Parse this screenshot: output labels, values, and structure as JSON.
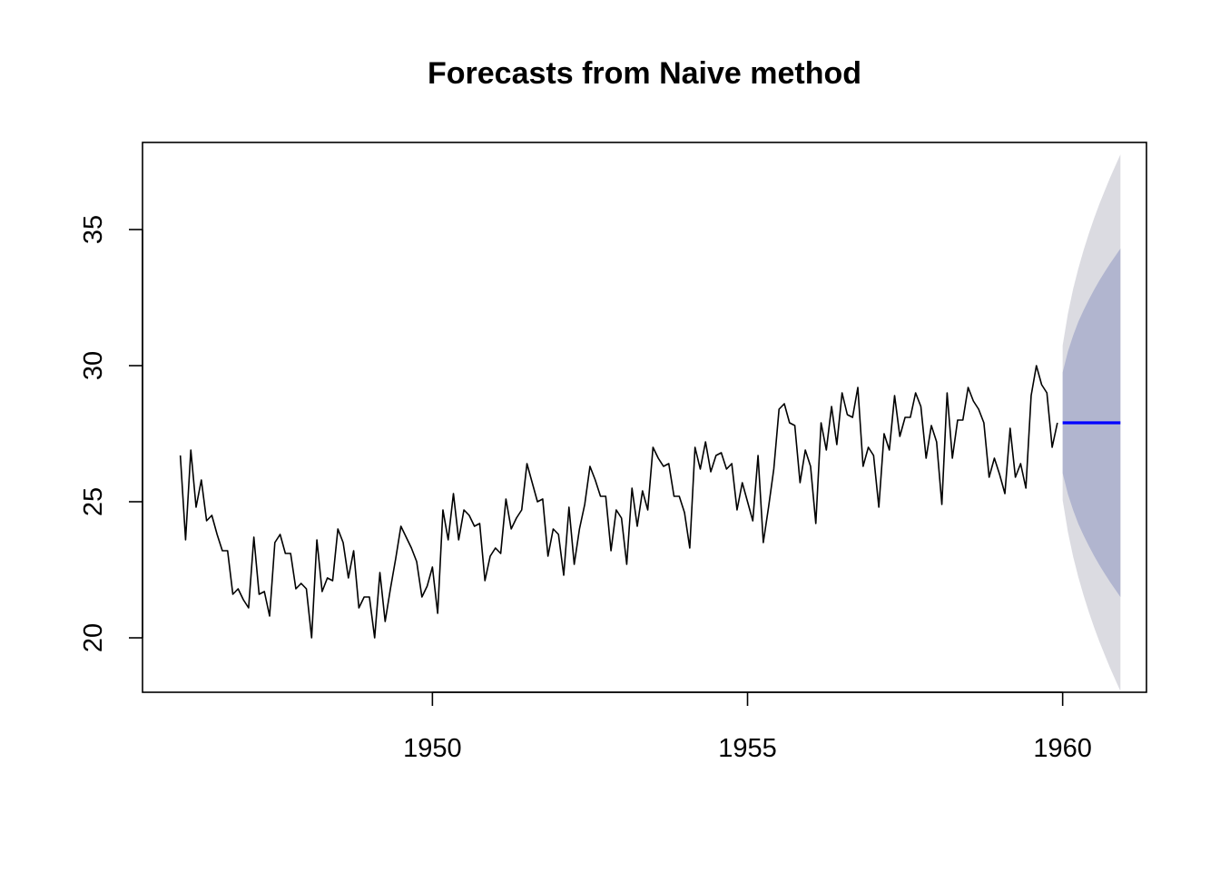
{
  "chart_data": {
    "type": "line",
    "title": "Forecasts from Naive method",
    "xlabel": "",
    "ylabel": "",
    "xlim": [
      1945.4,
      1961.33
    ],
    "ylim": [
      18.0,
      38.2
    ],
    "x_ticks": [
      1950,
      1955,
      1960
    ],
    "x_tick_labels": [
      "1950",
      "1955",
      "1960"
    ],
    "y_ticks": [
      20,
      25,
      30,
      35
    ],
    "y_tick_labels": [
      "20",
      "25",
      "30",
      "35"
    ],
    "grid": false,
    "legend": "none",
    "colors": {
      "history": "#000000",
      "forecast": "#0000ff",
      "band_80": "#b1b5cf",
      "band_95": "#dbdbe1"
    },
    "series": [
      {
        "role": "history",
        "start": 1946.0,
        "frequency": 12,
        "values": [
          26.7,
          23.6,
          26.9,
          24.8,
          25.8,
          24.3,
          24.5,
          23.8,
          23.2,
          23.2,
          21.6,
          21.8,
          21.4,
          21.1,
          23.7,
          21.6,
          21.7,
          20.8,
          23.5,
          23.8,
          23.1,
          23.1,
          21.8,
          22.0,
          21.8,
          20.0,
          23.6,
          21.7,
          22.2,
          22.1,
          24.0,
          23.5,
          22.2,
          23.2,
          21.1,
          21.5,
          21.5,
          20.0,
          22.4,
          20.6,
          21.8,
          22.9,
          24.1,
          23.7,
          23.3,
          22.8,
          21.5,
          21.9,
          22.6,
          20.9,
          24.7,
          23.6,
          25.3,
          23.6,
          24.7,
          24.5,
          24.1,
          24.2,
          22.1,
          23.0,
          23.3,
          23.1,
          25.1,
          24.0,
          24.4,
          24.7,
          26.4,
          25.7,
          25.0,
          25.1,
          23.0,
          24.0,
          23.8,
          22.3,
          24.8,
          22.7,
          24.0,
          24.9,
          26.3,
          25.8,
          25.2,
          25.2,
          23.2,
          24.7,
          24.4,
          22.7,
          25.5,
          24.1,
          25.4,
          24.7,
          27.0,
          26.6,
          26.3,
          26.4,
          25.2,
          25.2,
          24.6,
          23.3,
          27.0,
          26.2,
          27.2,
          26.1,
          26.7,
          26.8,
          26.2,
          26.4,
          24.7,
          25.7,
          25.0,
          24.3,
          26.7,
          23.5,
          24.8,
          26.2,
          28.4,
          28.6,
          27.9,
          27.8,
          25.7,
          26.9,
          26.3,
          24.2,
          27.9,
          26.9,
          28.5,
          27.1,
          29.0,
          28.2,
          28.1,
          29.2,
          26.3,
          27.0,
          26.7,
          24.8,
          27.5,
          26.9,
          28.9,
          27.4,
          28.1,
          28.1,
          29.0,
          28.5,
          26.6,
          27.8,
          27.2,
          24.9,
          29.0,
          26.6,
          28.0,
          28.0,
          29.2,
          28.7,
          28.4,
          27.9,
          25.9,
          26.6,
          26.0,
          25.3,
          27.7,
          25.9,
          26.4,
          25.5,
          28.9,
          30.0,
          29.3,
          29.0,
          27.0,
          27.9
        ]
      },
      {
        "role": "forecast",
        "start": 1960.0,
        "frequency": 12,
        "values": [
          27.9,
          27.9,
          27.9,
          27.9,
          27.9,
          27.9,
          27.9,
          27.9,
          27.9,
          27.9,
          27.9,
          27.9
        ],
        "lo80": [
          26.05,
          25.28,
          24.69,
          24.18,
          23.76,
          23.37,
          23.01,
          22.67,
          22.36,
          22.06,
          21.78,
          21.5
        ],
        "hi80": [
          29.75,
          30.52,
          31.11,
          31.62,
          32.04,
          32.43,
          32.79,
          33.13,
          33.44,
          33.74,
          34.02,
          34.3
        ],
        "lo95": [
          25.06,
          23.89,
          22.98,
          22.22,
          21.55,
          20.94,
          20.38,
          19.86,
          19.38,
          18.91,
          18.47,
          18.04
        ],
        "hi95": [
          30.74,
          31.91,
          32.82,
          33.58,
          34.25,
          34.86,
          35.42,
          35.94,
          36.42,
          36.89,
          37.33,
          37.76
        ]
      }
    ]
  }
}
